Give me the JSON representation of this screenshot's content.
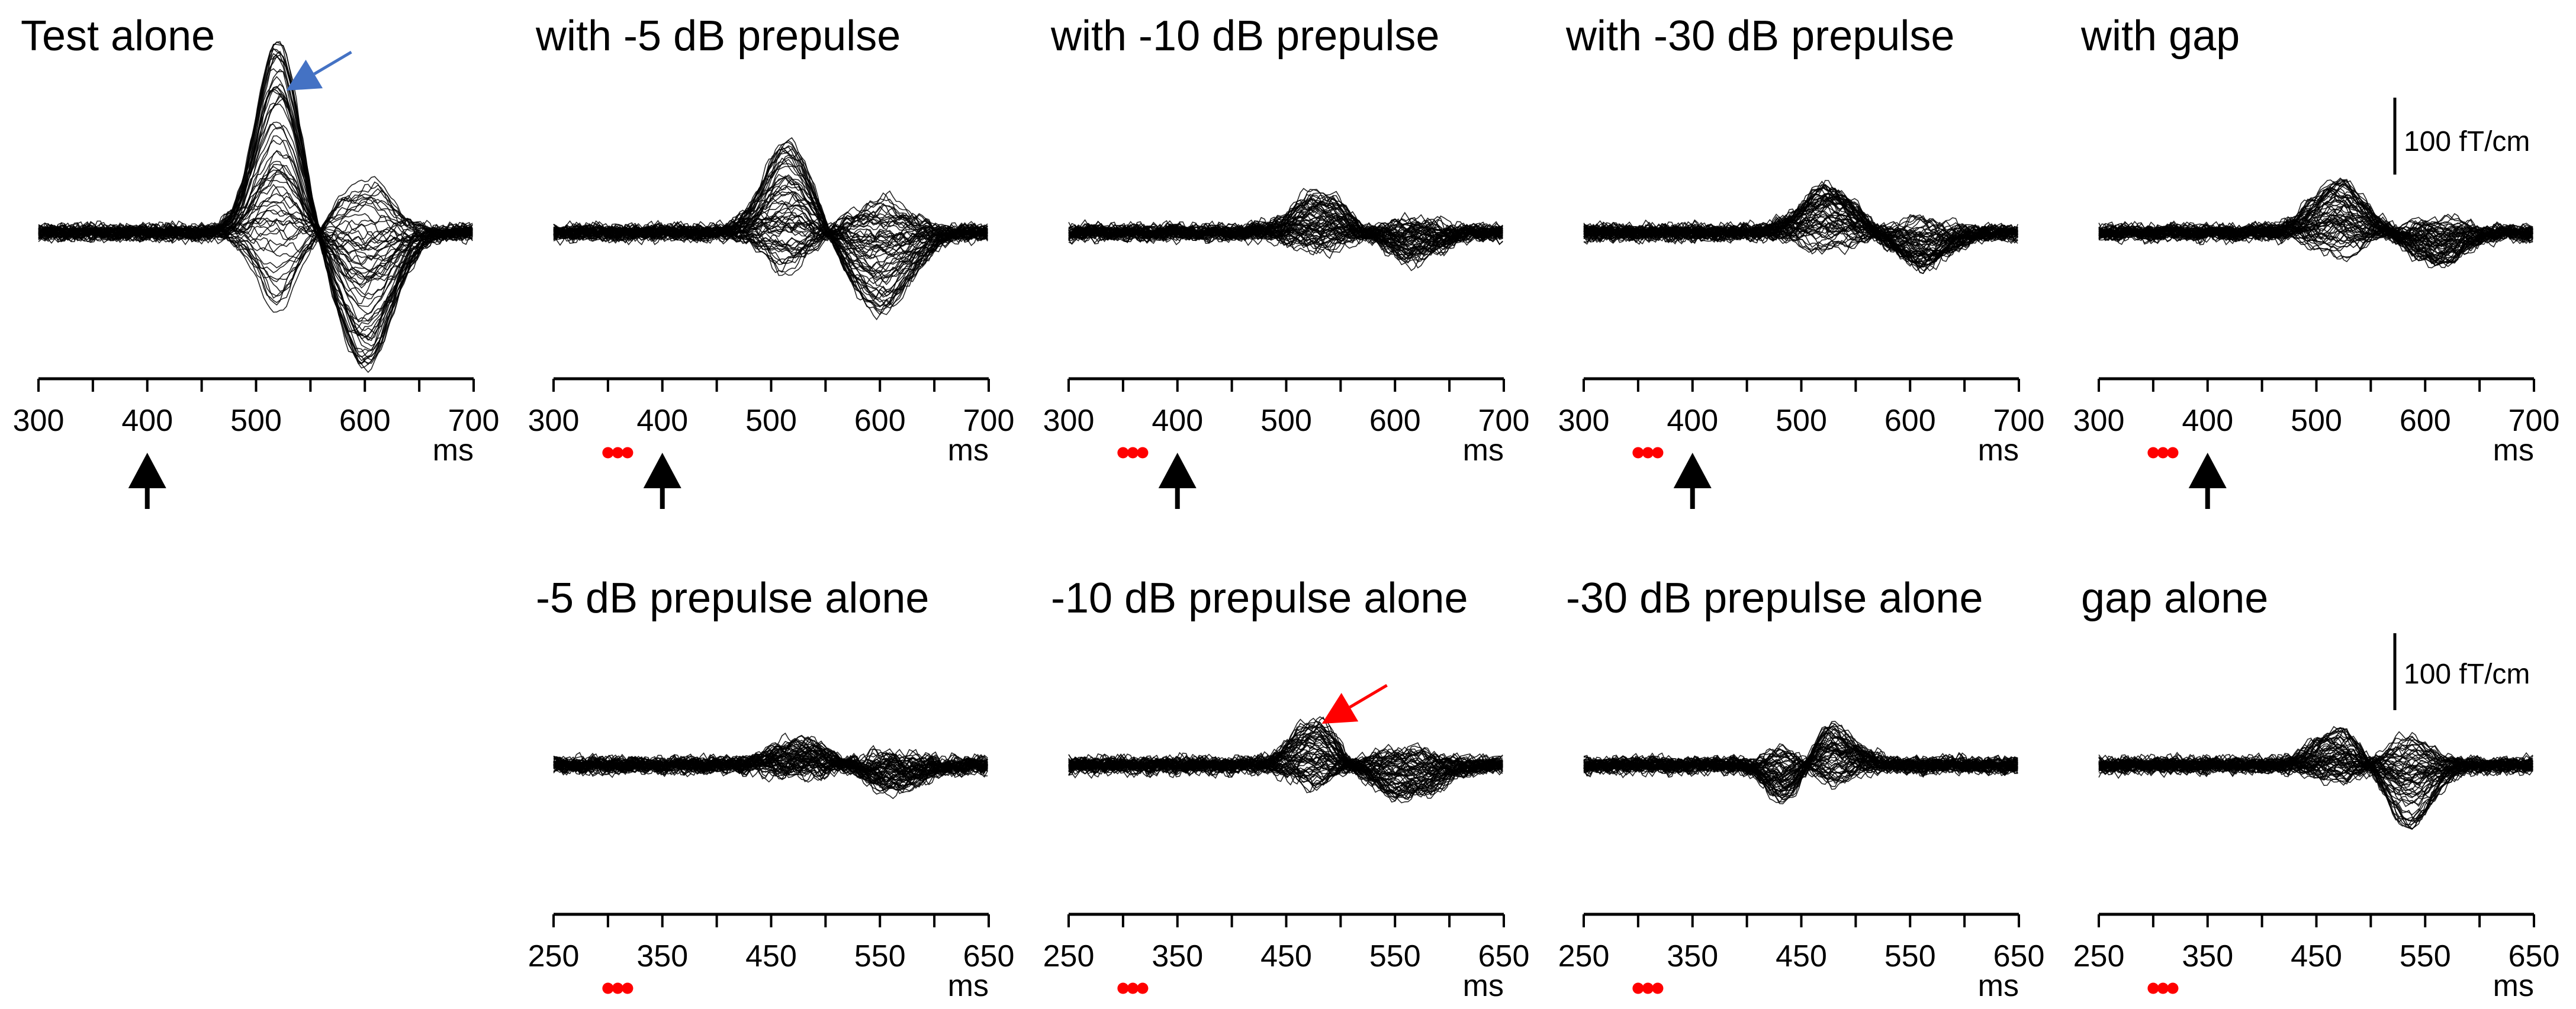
{
  "chart_data": [
    {
      "type": "line",
      "title": "Test alone",
      "xlabel": "ms",
      "xlim": [
        300,
        700
      ],
      "xticks": [
        "300",
        "400",
        "500",
        "600",
        "700"
      ],
      "prepulse_marker": false,
      "test_arrow": true,
      "annotation_arrow": {
        "x": 525,
        "color": "#4472C4"
      },
      "response_profile": [
        {
          "latency": 520,
          "amp": 235,
          "width": 20
        },
        {
          "latency": 600,
          "amp": -165,
          "width": 25
        }
      ]
    },
    {
      "type": "line",
      "title": "with -5 dB prepulse",
      "xlabel": "ms",
      "xlim": [
        300,
        700
      ],
      "xticks": [
        "300",
        "400",
        "500",
        "600",
        "700"
      ],
      "prepulse_marker": true,
      "test_arrow": true,
      "response_profile": [
        {
          "latency": 515,
          "amp": 110,
          "width": 22
        },
        {
          "latency": 600,
          "amp": -95,
          "width": 28
        }
      ]
    },
    {
      "type": "line",
      "title": "with -10 dB prepulse",
      "xlabel": "ms",
      "xlim": [
        300,
        700
      ],
      "xticks": [
        "300",
        "400",
        "500",
        "600",
        "700"
      ],
      "prepulse_marker": true,
      "test_arrow": true,
      "response_profile": [
        {
          "latency": 530,
          "amp": 50,
          "width": 25
        },
        {
          "latency": 615,
          "amp": -35,
          "width": 25
        }
      ]
    },
    {
      "type": "line",
      "title": "with -30 dB prepulse",
      "xlabel": "ms",
      "xlim": [
        300,
        700
      ],
      "xticks": [
        "300",
        "400",
        "500",
        "600",
        "700"
      ],
      "prepulse_marker": true,
      "test_arrow": true,
      "response_profile": [
        {
          "latency": 525,
          "amp": 55,
          "width": 25
        },
        {
          "latency": 610,
          "amp": -40,
          "width": 25
        }
      ]
    },
    {
      "type": "line",
      "title": "with gap",
      "xlabel": "ms",
      "xlim": [
        300,
        700
      ],
      "xticks": [
        "300",
        "400",
        "500",
        "600",
        "700"
      ],
      "prepulse_marker": true,
      "test_arrow": true,
      "response_profile": [
        {
          "latency": 520,
          "amp": 65,
          "width": 25
        },
        {
          "latency": 610,
          "amp": -40,
          "width": 25
        }
      ]
    },
    {
      "type": "line",
      "title": "-5 dB prepulse alone",
      "xlabel": "ms",
      "xlim": [
        250,
        650
      ],
      "xticks": [
        "250",
        "350",
        "450",
        "550",
        "650"
      ],
      "prepulse_marker": true,
      "test_arrow": false,
      "response_profile": [
        {
          "latency": 480,
          "amp": 30,
          "width": 30
        },
        {
          "latency": 560,
          "amp": -30,
          "width": 30
        }
      ]
    },
    {
      "type": "line",
      "title": "-10 dB prepulse alone",
      "xlabel": "ms",
      "xlim": [
        250,
        650
      ],
      "xticks": [
        "250",
        "350",
        "450",
        "550",
        "650"
      ],
      "prepulse_marker": true,
      "test_arrow": false,
      "annotation_arrow": {
        "x": 480,
        "color": "#FF0000"
      },
      "response_profile": [
        {
          "latency": 475,
          "amp": 55,
          "width": 20
        },
        {
          "latency": 560,
          "amp": -40,
          "width": 30
        }
      ]
    },
    {
      "type": "line",
      "title": "-30 dB prepulse alone",
      "xlabel": "ms",
      "xlim": [
        250,
        650
      ],
      "xticks": [
        "250",
        "350",
        "450",
        "550",
        "650"
      ],
      "prepulse_marker": true,
      "test_arrow": false,
      "response_profile": [
        {
          "latency": 470,
          "amp": 60,
          "width": 25
        },
        {
          "latency": 440,
          "amp": -70,
          "width": 18
        }
      ]
    },
    {
      "type": "line",
      "title": "gap alone",
      "xlabel": "ms",
      "xlim": [
        250,
        650
      ],
      "xticks": [
        "250",
        "350",
        "450",
        "550",
        "650"
      ],
      "prepulse_marker": true,
      "test_arrow": false,
      "response_profile": [
        {
          "latency": 470,
          "amp": 45,
          "width": 22
        },
        {
          "latency": 535,
          "amp": -75,
          "width": 22
        }
      ]
    }
  ],
  "scale_bar": {
    "label": "100 fT/cm",
    "value": 100,
    "unit": "fT/cm"
  },
  "colors": {
    "trace": "#000000",
    "prepulse_dots": "#FF0000",
    "test_arrow": "#000000"
  }
}
